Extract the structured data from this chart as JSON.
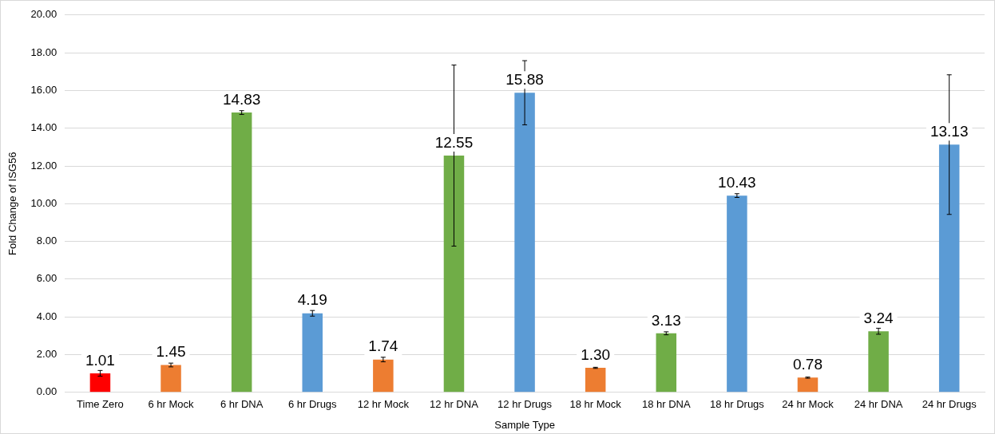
{
  "chart_data": {
    "type": "bar",
    "xlabel": "Sample Type",
    "ylabel": "Fold Change of ISG56",
    "categories": [
      "Time Zero",
      "6 hr Mock",
      "6 hr DNA",
      "6 hr Drugs",
      "12 hr Mock",
      "12 hr DNA",
      "12 hr Drugs",
      "18 hr Mock",
      "18 hr DNA",
      "18 hr Drugs",
      "24 hr Mock",
      "24 hr DNA",
      "24 hr Drugs"
    ],
    "values": [
      1.01,
      1.45,
      14.83,
      4.19,
      1.74,
      12.55,
      15.88,
      1.3,
      3.13,
      10.43,
      0.78,
      3.24,
      13.13
    ],
    "colors": [
      "#ff0000",
      "#ed7d31",
      "#70ad47",
      "#5b9bd5",
      "#ed7d31",
      "#70ad47",
      "#5b9bd5",
      "#ed7d31",
      "#70ad47",
      "#5b9bd5",
      "#ed7d31",
      "#70ad47",
      "#5b9bd5"
    ],
    "errors": [
      0.15,
      0.1,
      0.1,
      0.15,
      0.12,
      4.8,
      1.7,
      0.03,
      0.08,
      0.1,
      0.03,
      0.16,
      3.7
    ],
    "value_labels": [
      "1.01",
      "1.45",
      "14.83",
      "4.19",
      "1.74",
      "12.55",
      "15.88",
      "1.30",
      "3.13",
      "10.43",
      "0.78",
      "3.24",
      "13.13"
    ],
    "ylim": [
      0,
      20
    ],
    "yticks": [
      {
        "value": 0,
        "label": "0.00"
      },
      {
        "value": 2,
        "label": "2.00"
      },
      {
        "value": 4,
        "label": "4.00"
      },
      {
        "value": 6,
        "label": "6.00"
      },
      {
        "value": 8,
        "label": "8.00"
      },
      {
        "value": 10,
        "label": "10.00"
      },
      {
        "value": 12,
        "label": "12.00"
      },
      {
        "value": 14,
        "label": "14.00"
      },
      {
        "value": 16,
        "label": "16.00"
      },
      {
        "value": 18,
        "label": "18.00"
      },
      {
        "value": 20,
        "label": "20.00"
      }
    ],
    "grid": "y",
    "legend": false
  }
}
